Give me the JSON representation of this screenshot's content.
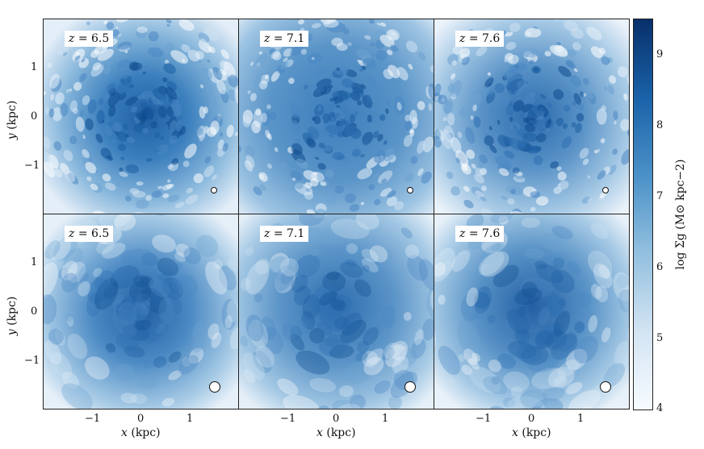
{
  "figure": {
    "rows": [
      {
        "y_label": "y (kpc)",
        "panels": [
          {
            "z_prefix": "z = ",
            "z_value": "6.5",
            "marker": "small-circle"
          },
          {
            "z_prefix": "z = ",
            "z_value": "7.1",
            "marker": "small-circle"
          },
          {
            "z_prefix": "z = ",
            "z_value": "7.6",
            "marker": "small-circle"
          }
        ]
      },
      {
        "y_label": "y (kpc)",
        "panels": [
          {
            "z_prefix": "z = ",
            "z_value": "6.5",
            "marker": "large-circle"
          },
          {
            "z_prefix": "z = ",
            "z_value": "7.1",
            "marker": "large-circle"
          },
          {
            "z_prefix": "z = ",
            "z_value": "7.6",
            "marker": "large-circle"
          }
        ]
      }
    ],
    "x_axis": {
      "title_var": "x",
      "title_unit": " (kpc)",
      "ticks": [
        "−1",
        "0",
        "1"
      ]
    },
    "y_axis": {
      "title_var": "y",
      "title_unit": " (kpc)",
      "ticks": [
        "1",
        "0",
        "−1"
      ]
    },
    "colorbar": {
      "label": "log Σg (M⊙ kpc−2)",
      "ticks": [
        "9",
        "8",
        "7",
        "6",
        "5",
        "4"
      ],
      "range": [
        4,
        9.5
      ],
      "color_low": "#f7fbff",
      "color_high": "#08306b"
    }
  }
}
